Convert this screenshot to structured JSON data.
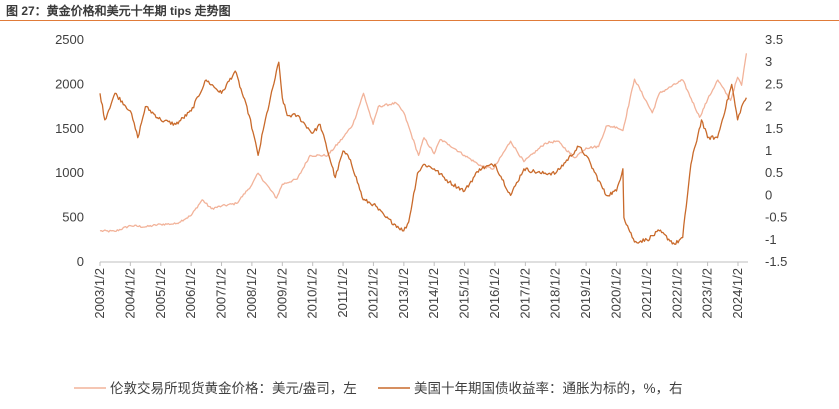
{
  "title": "图 27：黄金价格和美元十年期 tips 走势图",
  "colors": {
    "gold": "#f2b39a",
    "tips": "#c96a2b",
    "accent": "#e07b39",
    "text": "#404040"
  },
  "chart_data": {
    "type": "line",
    "title": "",
    "x": [
      "2003/1/2",
      "2004/1/2",
      "2005/1/2",
      "2006/1/2",
      "2007/1/2",
      "2008/1/2",
      "2009/1/2",
      "2010/1/2",
      "2011/1/2",
      "2012/1/2",
      "2013/1/2",
      "2014/1/2",
      "2015/1/2",
      "2016/1/2",
      "2017/1/2",
      "2018/1/2",
      "2019/1/2",
      "2020/1/2",
      "2021/1/2",
      "2022/1/2",
      "2023/1/2",
      "2024/1/2"
    ],
    "ylim_left": [
      0,
      2500
    ],
    "yticks_left": [
      "0",
      "500",
      "1000",
      "1500",
      "2000",
      "2500"
    ],
    "ylim_right": [
      -1.5,
      3.5
    ],
    "yticks_right": [
      "-1.5",
      "-1",
      "-0.5",
      "0",
      "0.5",
      "1",
      "1.5",
      "2",
      "2.5",
      "3",
      "3.5"
    ],
    "legend_position": "bottom",
    "series": [
      {
        "name": "伦敦交易所现货黄金价格：美元/盎司，左",
        "axis": "left",
        "color": "#f2b39a",
        "points": [
          [
            "2003-01-02",
            350
          ],
          [
            "2003-07-01",
            345
          ],
          [
            "2004-01-02",
            410
          ],
          [
            "2004-07-01",
            395
          ],
          [
            "2005-01-02",
            425
          ],
          [
            "2005-07-01",
            430
          ],
          [
            "2006-01-02",
            525
          ],
          [
            "2006-05-15",
            700
          ],
          [
            "2006-09-01",
            600
          ],
          [
            "2007-01-02",
            630
          ],
          [
            "2007-07-01",
            660
          ],
          [
            "2008-01-02",
            870
          ],
          [
            "2008-03-17",
            1000
          ],
          [
            "2008-10-24",
            720
          ],
          [
            "2009-01-02",
            875
          ],
          [
            "2009-07-01",
            935
          ],
          [
            "2009-12-01",
            1200
          ],
          [
            "2010-07-01",
            1200
          ],
          [
            "2011-01-02",
            1400
          ],
          [
            "2011-05-01",
            1550
          ],
          [
            "2011-09-05",
            1900
          ],
          [
            "2011-12-29",
            1550
          ],
          [
            "2012-03-01",
            1750
          ],
          [
            "2012-10-01",
            1790
          ],
          [
            "2013-01-02",
            1680
          ],
          [
            "2013-06-28",
            1200
          ],
          [
            "2013-09-01",
            1400
          ],
          [
            "2014-01-02",
            1220
          ],
          [
            "2014-03-15",
            1380
          ],
          [
            "2014-07-01",
            1320
          ],
          [
            "2015-01-02",
            1200
          ],
          [
            "2015-07-24",
            1080
          ],
          [
            "2015-12-17",
            1050
          ],
          [
            "2016-07-08",
            1360
          ],
          [
            "2016-12-15",
            1130
          ],
          [
            "2017-09-01",
            1340
          ],
          [
            "2018-01-25",
            1360
          ],
          [
            "2018-08-16",
            1175
          ],
          [
            "2019-01-02",
            1285
          ],
          [
            "2019-06-01",
            1300
          ],
          [
            "2019-09-01",
            1530
          ],
          [
            "2020-01-02",
            1520
          ],
          [
            "2020-03-19",
            1480
          ],
          [
            "2020-08-06",
            2060
          ],
          [
            "2021-03-08",
            1680
          ],
          [
            "2021-06-01",
            1900
          ],
          [
            "2022-03-08",
            2050
          ],
          [
            "2022-09-28",
            1630
          ],
          [
            "2023-01-02",
            1830
          ],
          [
            "2023-05-04",
            2050
          ],
          [
            "2023-10-05",
            1820
          ],
          [
            "2023-12-28",
            2080
          ],
          [
            "2024-02-14",
            1990
          ],
          [
            "2024-04-12",
            2350
          ]
        ]
      },
      {
        "name": "美国十年期国债收益率：通胀为标的，%，右",
        "axis": "right",
        "color": "#c96a2b",
        "points": [
          [
            "2003-01-02",
            2.3
          ],
          [
            "2003-03-01",
            1.7
          ],
          [
            "2003-07-01",
            2.3
          ],
          [
            "2004-01-02",
            1.9
          ],
          [
            "2004-04-01",
            1.3
          ],
          [
            "2004-07-01",
            2.0
          ],
          [
            "2005-01-02",
            1.7
          ],
          [
            "2005-07-01",
            1.6
          ],
          [
            "2006-01-02",
            1.9
          ],
          [
            "2006-07-01",
            2.6
          ],
          [
            "2007-01-02",
            2.3
          ],
          [
            "2007-06-15",
            2.8
          ],
          [
            "2007-12-01",
            1.8
          ],
          [
            "2008-03-17",
            0.9
          ],
          [
            "2008-06-01",
            1.6
          ],
          [
            "2008-11-20",
            3.0
          ],
          [
            "2009-01-02",
            2.2
          ],
          [
            "2009-03-01",
            1.8
          ],
          [
            "2009-07-01",
            1.8
          ],
          [
            "2010-01-02",
            1.4
          ],
          [
            "2010-04-01",
            1.6
          ],
          [
            "2010-10-01",
            0.4
          ],
          [
            "2011-01-02",
            1.0
          ],
          [
            "2011-04-01",
            0.8
          ],
          [
            "2011-09-01",
            -0.1
          ],
          [
            "2012-01-02",
            -0.2
          ],
          [
            "2012-06-01",
            -0.5
          ],
          [
            "2012-12-31",
            -0.8
          ],
          [
            "2013-03-01",
            -0.6
          ],
          [
            "2013-06-15",
            0.5
          ],
          [
            "2013-09-01",
            0.7
          ],
          [
            "2014-01-02",
            0.6
          ],
          [
            "2014-07-01",
            0.3
          ],
          [
            "2015-01-02",
            0.1
          ],
          [
            "2015-07-01",
            0.6
          ],
          [
            "2016-01-02",
            0.7
          ],
          [
            "2016-07-08",
            0.0
          ],
          [
            "2016-12-15",
            0.6
          ],
          [
            "2017-07-01",
            0.5
          ],
          [
            "2018-01-02",
            0.5
          ],
          [
            "2018-10-05",
            1.1
          ],
          [
            "2019-01-02",
            0.9
          ],
          [
            "2019-09-01",
            0.0
          ],
          [
            "2020-01-02",
            0.1
          ],
          [
            "2020-03-19",
            0.6
          ],
          [
            "2020-04-01",
            -0.5
          ],
          [
            "2020-08-06",
            -1.05
          ],
          [
            "2021-01-02",
            -1.0
          ],
          [
            "2021-06-01",
            -0.8
          ],
          [
            "2021-12-01",
            -1.1
          ],
          [
            "2022-03-08",
            -0.95
          ],
          [
            "2022-06-15",
            0.7
          ],
          [
            "2022-10-20",
            1.7
          ],
          [
            "2023-01-02",
            1.3
          ],
          [
            "2023-05-01",
            1.3
          ],
          [
            "2023-10-19",
            2.5
          ],
          [
            "2023-12-28",
            1.7
          ],
          [
            "2024-02-14",
            2.0
          ],
          [
            "2024-04-12",
            2.2
          ]
        ]
      }
    ]
  }
}
